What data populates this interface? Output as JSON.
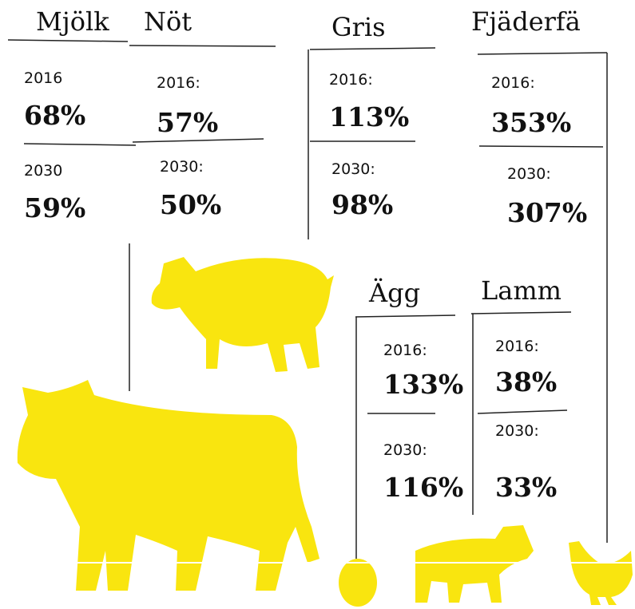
{
  "sections": [
    {
      "title": "Mjölk",
      "rows": [
        {
          "year": "2016",
          "value": "68%"
        },
        {
          "year": "2030",
          "value": "59%"
        }
      ]
    },
    {
      "title": "Nöt",
      "rows": [
        {
          "year": "2016:",
          "value": "57%"
        },
        {
          "year": "2030:",
          "value": "50%"
        }
      ]
    },
    {
      "title": "Gris",
      "rows": [
        {
          "year": "2016:",
          "value": "113%"
        },
        {
          "year": "2030:",
          "value": "98%"
        }
      ]
    },
    {
      "title": "Fjäderfä",
      "rows": [
        {
          "year": "2016:",
          "value": "353%"
        },
        {
          "year": "2030:",
          "value": "307%"
        }
      ]
    },
    {
      "title": "Ägg",
      "rows": [
        {
          "year": "2016:",
          "value": "133%"
        },
        {
          "year": "2030:",
          "value": "116%"
        }
      ]
    },
    {
      "title": "Lamm",
      "rows": [
        {
          "year": "2016:",
          "value": "38%"
        },
        {
          "year": "2030:",
          "value": "33%"
        }
      ]
    }
  ]
}
